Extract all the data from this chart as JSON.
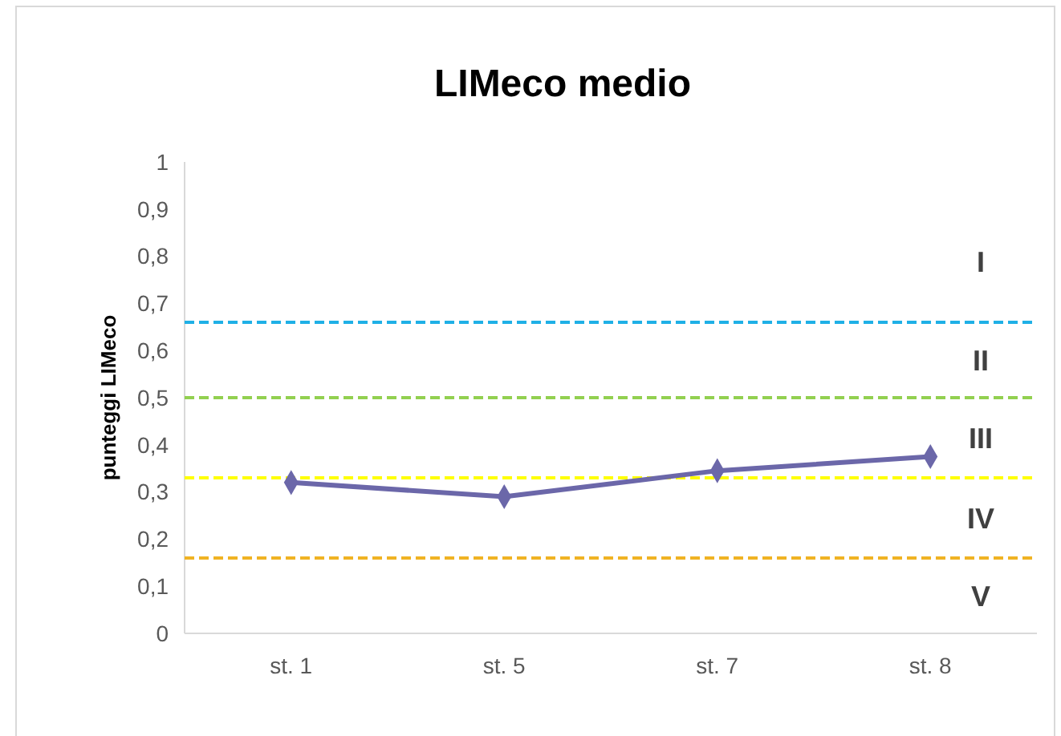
{
  "chart_data": {
    "type": "line",
    "title": "LIMeco medio",
    "ylabel": "punteggi LIMeco",
    "categories": [
      "st. 1",
      "st. 5",
      "st. 7",
      "st. 8"
    ],
    "series": [
      {
        "color": "#6b67a9",
        "values": [
          0.32,
          0.29,
          0.345,
          0.375
        ]
      }
    ],
    "marker": "diamond",
    "line_style": "solid",
    "grid": false,
    "ylim": [
      0,
      1
    ],
    "yticks": [
      0,
      {
        "value": 0.1,
        "label": "0,1"
      },
      {
        "value": 0.2,
        "label": "0,2"
      },
      {
        "value": 0.3,
        "label": "0,3"
      },
      {
        "value": 0.4,
        "label": "0,4"
      },
      {
        "value": 0.5,
        "label": "0,5"
      },
      {
        "value": 0.6,
        "label": "0,6"
      },
      {
        "value": 0.7,
        "label": "0,7"
      },
      {
        "value": 0.8,
        "label": "0,8"
      },
      {
        "value": 0.9,
        "label": "0,9"
      },
      1
    ],
    "ref_lines": [
      {
        "axis": "y",
        "value": 0.66,
        "color": "#1fb0e6",
        "line_style": "dashed"
      },
      {
        "axis": "y",
        "value": 0.5,
        "color": "#92d050",
        "line_style": "dashed"
      },
      {
        "axis": "y",
        "value": 0.33,
        "color": "#ffff00",
        "line_style": "dashed"
      },
      {
        "axis": "y",
        "value": 0.16,
        "color": "#f0b323",
        "line_style": "dashed"
      }
    ],
    "annotations": [
      "I",
      "II",
      "III",
      "IV",
      "V"
    ]
  }
}
